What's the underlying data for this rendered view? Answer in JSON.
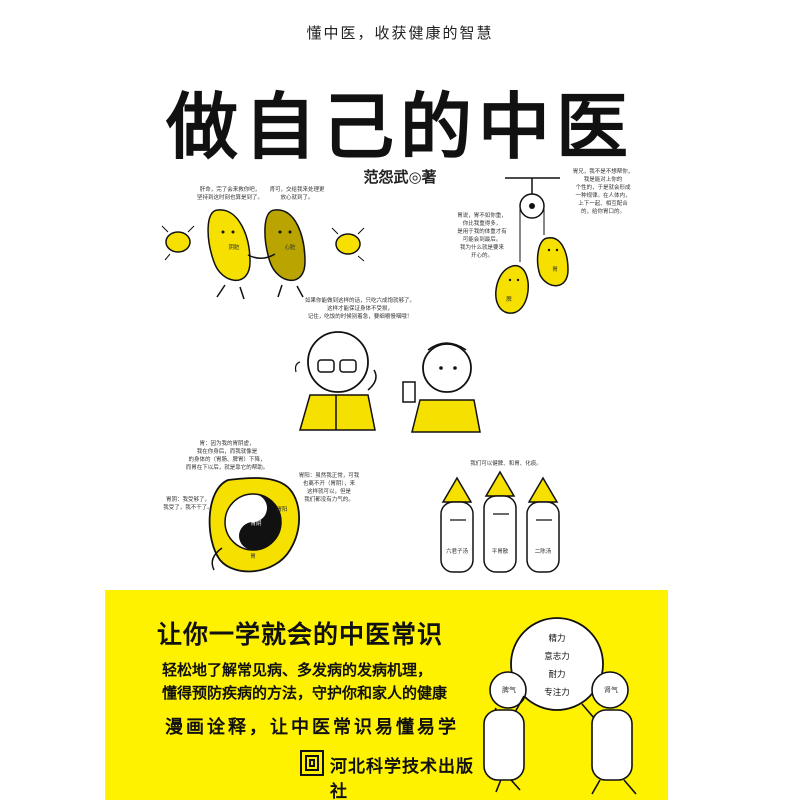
{
  "cover": {
    "tagline": "懂中医，收获健康的智慧",
    "title": "做自己的中医",
    "author": "范怨武◎著"
  },
  "illustrations": {
    "kidneys": {
      "bubble_left": [
        "肝命，完了会来救你吧，",
        "坚持到这时刻也算是到了。"
      ],
      "bubble_right": [
        "肾可，交给我来处理更",
        "放心就到了。"
      ],
      "label_left": "阴脏",
      "label_right": "心脏"
    },
    "pulley": {
      "bubble_left": [
        "胃说，胃不如你重，",
        "你比我重得多，",
        "是用于我的体重才有",
        "可能会到最后。",
        "我为什么就是要来",
        "开心的。"
      ],
      "bubble_right": [
        "胃兄，我不是不想帮你，",
        "我是能对上你的",
        "个性的，于是就会形成",
        "一种规律。在人体内，",
        "上下一起、相互配合",
        "的，给你胃口的。"
      ],
      "label_stomach": "胃",
      "label_spleen": "脾"
    },
    "doctor": {
      "bubble": [
        "如果你能做到这样的话，只吃六成饱就够了。",
        "这样才能保证身体不受损，",
        "记住，吃饭的时候别着急，要细嚼慢咽哦！"
      ]
    },
    "yin_yang": {
      "bubble_top": [
        "胃：因为我的胃阴虚，",
        "我在你身后，而我就像是",
        "的身体的（胃肠、脾胃）下降，",
        "而胃在下以后，就是靠它的帮助。"
      ],
      "bubble_left": [
        "胃阴：我受够了，",
        "我受了，我不干了。"
      ],
      "bubble_right": [
        "胃阳：虽然我正常，可我",
        "也离不开（胃阴），来",
        "这样就可以，但是",
        "我们都没有力气的。"
      ],
      "label_yang": "胃阳",
      "label_yin": "胃阴",
      "label_stomach": "胃"
    },
    "trio": {
      "bubble": [
        "我们可以健脾、和胃、化痰。"
      ],
      "label_left": "六君子汤",
      "label_center": "平胃散",
      "label_right": "二陈汤"
    }
  },
  "panel": {
    "headline": "让你一学就会的中医常识",
    "line1": "轻松地了解常见病、多发病的发病机理，",
    "line2": "懂得预防疾病的方法，守护你和家人的健康",
    "tagline": "漫画诠释，让中医常识易懂易学",
    "circle_words": [
      "精力",
      "意志力",
      "耐力",
      "专注力"
    ],
    "figure_left_label": "脾气",
    "figure_right_label": "肾气"
  },
  "publisher": {
    "name": "河北科学技术出版社"
  },
  "colors": {
    "accent_yellow": "#fff200",
    "ink": "#111111",
    "illustration_yellow": "#f5e000"
  }
}
